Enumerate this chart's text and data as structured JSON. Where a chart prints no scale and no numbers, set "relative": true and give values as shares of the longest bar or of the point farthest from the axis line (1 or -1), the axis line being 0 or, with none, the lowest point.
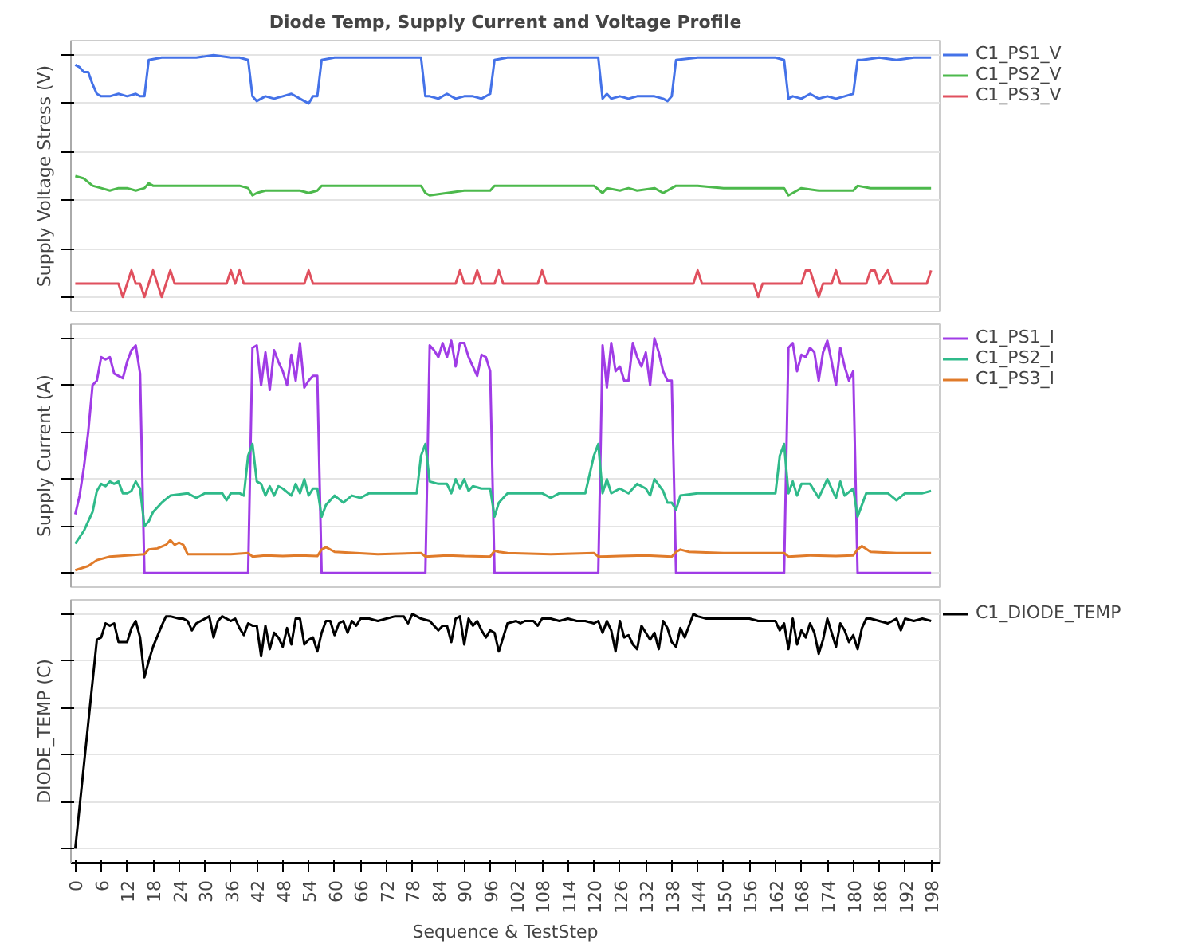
{
  "chart_data": [
    {
      "type": "line",
      "title": "Diode Temp, Supply Current and Voltage Profile",
      "ylabel": "Supply Voltage Stress (V)",
      "relative": true,
      "xlim": [
        -1,
        200
      ],
      "tick_labels": false,
      "grid": "y",
      "legend": "right",
      "series": [
        {
          "name": "C1_PS1_V",
          "color": "#4472e8",
          "x": [
            0,
            1,
            2,
            3,
            4,
            5,
            6,
            8,
            10,
            12,
            14,
            15,
            16,
            17,
            20,
            24,
            28,
            32,
            36,
            38,
            40,
            41,
            42,
            44,
            46,
            48,
            50,
            52,
            54,
            55,
            56,
            57,
            60,
            66,
            72,
            78,
            80,
            81,
            82,
            84,
            86,
            88,
            90,
            92,
            94,
            96,
            97,
            100,
            108,
            116,
            120,
            121,
            122,
            123,
            124,
            126,
            128,
            130,
            132,
            134,
            136,
            137,
            138,
            139,
            144,
            150,
            156,
            162,
            164,
            165,
            166,
            168,
            170,
            172,
            174,
            176,
            178,
            180,
            181,
            182,
            186,
            190,
            194,
            198
          ],
          "values": [
            0.96,
            0.95,
            0.93,
            0.93,
            0.88,
            0.84,
            0.83,
            0.83,
            0.84,
            0.83,
            0.84,
            0.83,
            0.83,
            0.98,
            0.99,
            0.99,
            0.99,
            1.0,
            0.99,
            0.99,
            0.98,
            0.83,
            0.81,
            0.83,
            0.82,
            0.83,
            0.84,
            0.82,
            0.8,
            0.83,
            0.83,
            0.98,
            0.99,
            0.99,
            0.99,
            0.99,
            0.99,
            0.83,
            0.83,
            0.82,
            0.84,
            0.82,
            0.83,
            0.83,
            0.82,
            0.84,
            0.98,
            0.99,
            0.99,
            0.99,
            0.99,
            0.99,
            0.82,
            0.84,
            0.82,
            0.83,
            0.82,
            0.83,
            0.83,
            0.83,
            0.82,
            0.81,
            0.83,
            0.98,
            0.99,
            0.99,
            0.99,
            0.99,
            0.98,
            0.82,
            0.83,
            0.82,
            0.84,
            0.82,
            0.83,
            0.82,
            0.83,
            0.84,
            0.98,
            0.98,
            0.99,
            0.98,
            0.99,
            0.99
          ]
        },
        {
          "name": "C1_PS2_V",
          "color": "#4cb94c",
          "x": [
            0,
            2,
            4,
            6,
            8,
            10,
            12,
            14,
            16,
            17,
            18,
            22,
            26,
            30,
            34,
            38,
            40,
            41,
            42,
            44,
            48,
            52,
            54,
            56,
            57,
            60,
            66,
            72,
            78,
            80,
            81,
            82,
            86,
            90,
            94,
            96,
            97,
            100,
            110,
            120,
            122,
            123,
            126,
            128,
            130,
            134,
            136,
            139,
            144,
            150,
            156,
            162,
            164,
            165,
            166,
            168,
            172,
            176,
            180,
            181,
            184,
            190,
            198
          ],
          "values": [
            0.5,
            0.49,
            0.46,
            0.45,
            0.44,
            0.45,
            0.45,
            0.44,
            0.45,
            0.47,
            0.46,
            0.46,
            0.46,
            0.46,
            0.46,
            0.46,
            0.45,
            0.42,
            0.43,
            0.44,
            0.44,
            0.44,
            0.43,
            0.44,
            0.46,
            0.46,
            0.46,
            0.46,
            0.46,
            0.46,
            0.43,
            0.42,
            0.43,
            0.44,
            0.44,
            0.44,
            0.46,
            0.46,
            0.46,
            0.46,
            0.43,
            0.45,
            0.44,
            0.45,
            0.44,
            0.45,
            0.43,
            0.46,
            0.46,
            0.45,
            0.45,
            0.45,
            0.45,
            0.42,
            0.43,
            0.45,
            0.44,
            0.44,
            0.44,
            0.46,
            0.45,
            0.45,
            0.45
          ]
        },
        {
          "name": "C1_PS3_V",
          "color": "#e0505e",
          "x": [
            0,
            10,
            11,
            12,
            13,
            14,
            15,
            16,
            17,
            18,
            19,
            20,
            21,
            22,
            23,
            35,
            36,
            37,
            38,
            39,
            53,
            54,
            55,
            88,
            89,
            90,
            92,
            93,
            94,
            97,
            98,
            99,
            107,
            108,
            109,
            143,
            144,
            145,
            157,
            158,
            159,
            168,
            169,
            170,
            171,
            172,
            173,
            175,
            176,
            177,
            183,
            184,
            185,
            186,
            188,
            189,
            197,
            198
          ],
          "values": [
            0.055,
            0.055,
            0,
            0.055,
            0.11,
            0.055,
            0.055,
            0,
            0.055,
            0.11,
            0.055,
            0,
            0.055,
            0.11,
            0.055,
            0.055,
            0.11,
            0.055,
            0.11,
            0.055,
            0.055,
            0.11,
            0.055,
            0.055,
            0.11,
            0.055,
            0.055,
            0.11,
            0.055,
            0.055,
            0.11,
            0.055,
            0.055,
            0.11,
            0.055,
            0.055,
            0.11,
            0.055,
            0.055,
            0,
            0.055,
            0.055,
            0.11,
            0.11,
            0.055,
            0,
            0.055,
            0.055,
            0.11,
            0.055,
            0.055,
            0.11,
            0.11,
            0.055,
            0.11,
            0.055,
            0.055,
            0.11
          ]
        }
      ]
    },
    {
      "type": "line",
      "ylabel": "Supply Current (A)",
      "relative": true,
      "xlim": [
        -1,
        200
      ],
      "tick_labels": false,
      "grid": "y",
      "legend": "right",
      "series": [
        {
          "name": "C1_PS1_I",
          "color": "#a03ce6",
          "x": [
            0,
            1,
            2,
            3,
            4,
            5,
            6,
            7,
            8,
            9,
            10,
            11,
            12,
            13,
            14,
            15,
            16,
            40,
            41,
            42,
            43,
            44,
            45,
            46,
            47,
            48,
            49,
            50,
            51,
            52,
            53,
            54,
            55,
            56,
            57,
            81,
            82,
            83,
            84,
            85,
            86,
            87,
            88,
            89,
            90,
            91,
            92,
            93,
            94,
            95,
            96,
            97,
            121,
            122,
            123,
            124,
            125,
            126,
            127,
            128,
            129,
            130,
            131,
            132,
            133,
            134,
            135,
            136,
            137,
            138,
            139,
            164,
            165,
            166,
            167,
            168,
            169,
            170,
            171,
            172,
            173,
            174,
            175,
            176,
            177,
            178,
            179,
            180,
            181,
            198
          ],
          "values": [
            0.25,
            0.33,
            0.45,
            0.6,
            0.8,
            0.82,
            0.92,
            0.91,
            0.92,
            0.85,
            0.84,
            0.83,
            0.9,
            0.95,
            0.97,
            0.85,
            0,
            0,
            0.96,
            0.97,
            0.8,
            0.94,
            0.78,
            0.95,
            0.9,
            0.86,
            0.8,
            0.93,
            0.82,
            0.98,
            0.79,
            0.82,
            0.84,
            0.84,
            0,
            0,
            0.97,
            0.95,
            0.92,
            0.98,
            0.92,
            0.99,
            0.88,
            0.98,
            0.98,
            0.92,
            0.88,
            0.84,
            0.93,
            0.92,
            0.86,
            0,
            0,
            0.97,
            0.79,
            0.98,
            0.86,
            0.88,
            0.82,
            0.82,
            0.98,
            0.92,
            0.88,
            0.94,
            0.8,
            1.0,
            0.94,
            0.86,
            0.82,
            0.82,
            0,
            0,
            0.96,
            0.98,
            0.86,
            0.93,
            0.92,
            0.96,
            0.94,
            0.82,
            0.94,
            0.99,
            0.9,
            0.8,
            0.96,
            0.88,
            0.82,
            0.86,
            0,
            0
          ]
        },
        {
          "name": "C1_PS2_I",
          "color": "#2fba8a",
          "x": [
            0,
            2,
            4,
            5,
            6,
            7,
            8,
            9,
            10,
            11,
            12,
            13,
            14,
            15,
            16,
            17,
            18,
            20,
            22,
            26,
            28,
            30,
            32,
            34,
            35,
            36,
            38,
            39,
            40,
            41,
            42,
            43,
            44,
            45,
            46,
            47,
            48,
            50,
            51,
            52,
            53,
            54,
            55,
            56,
            57,
            58,
            60,
            62,
            64,
            66,
            68,
            72,
            76,
            79,
            80,
            81,
            82,
            84,
            86,
            87,
            88,
            89,
            90,
            91,
            92,
            94,
            96,
            97,
            98,
            100,
            104,
            108,
            110,
            112,
            118,
            120,
            121,
            122,
            123,
            124,
            126,
            128,
            130,
            132,
            133,
            134,
            136,
            137,
            138,
            139,
            140,
            144,
            150,
            156,
            162,
            163,
            164,
            165,
            166,
            167,
            168,
            170,
            172,
            174,
            176,
            177,
            178,
            180,
            181,
            183,
            188,
            190,
            192,
            196,
            198
          ],
          "values": [
            0.125,
            0.18,
            0.26,
            0.35,
            0.38,
            0.37,
            0.39,
            0.38,
            0.39,
            0.34,
            0.34,
            0.35,
            0.39,
            0.36,
            0.2,
            0.22,
            0.26,
            0.3,
            0.33,
            0.34,
            0.32,
            0.34,
            0.34,
            0.34,
            0.31,
            0.34,
            0.34,
            0.33,
            0.5,
            0.55,
            0.39,
            0.38,
            0.33,
            0.37,
            0.33,
            0.37,
            0.36,
            0.33,
            0.38,
            0.34,
            0.4,
            0.33,
            0.36,
            0.36,
            0.24,
            0.29,
            0.33,
            0.3,
            0.33,
            0.32,
            0.34,
            0.34,
            0.34,
            0.34,
            0.5,
            0.55,
            0.39,
            0.38,
            0.38,
            0.34,
            0.4,
            0.36,
            0.4,
            0.35,
            0.37,
            0.36,
            0.36,
            0.24,
            0.3,
            0.34,
            0.34,
            0.34,
            0.32,
            0.34,
            0.34,
            0.5,
            0.55,
            0.34,
            0.4,
            0.34,
            0.36,
            0.34,
            0.38,
            0.36,
            0.33,
            0.4,
            0.35,
            0.3,
            0.3,
            0.27,
            0.33,
            0.34,
            0.34,
            0.34,
            0.34,
            0.5,
            0.55,
            0.34,
            0.39,
            0.33,
            0.38,
            0.38,
            0.32,
            0.4,
            0.32,
            0.39,
            0.33,
            0.36,
            0.24,
            0.34,
            0.34,
            0.31,
            0.34,
            0.34,
            0.35
          ]
        },
        {
          "name": "C1_PS3_I",
          "color": "#e07b2a",
          "x": [
            0,
            3,
            5,
            8,
            12,
            16,
            17,
            19,
            21,
            22,
            23,
            24,
            25,
            26,
            30,
            36,
            40,
            41,
            44,
            48,
            52,
            56,
            57,
            58,
            60,
            70,
            80,
            81,
            86,
            90,
            96,
            97,
            98,
            100,
            110,
            120,
            121,
            126,
            132,
            138,
            139,
            140,
            142,
            150,
            160,
            164,
            165,
            170,
            176,
            180,
            181,
            182,
            184,
            190,
            198
          ],
          "values": [
            0.012,
            0.03,
            0.055,
            0.07,
            0.075,
            0.08,
            0.1,
            0.105,
            0.12,
            0.14,
            0.12,
            0.13,
            0.12,
            0.08,
            0.08,
            0.08,
            0.085,
            0.07,
            0.075,
            0.072,
            0.075,
            0.072,
            0.1,
            0.11,
            0.09,
            0.08,
            0.085,
            0.07,
            0.075,
            0.072,
            0.07,
            0.095,
            0.09,
            0.085,
            0.08,
            0.085,
            0.07,
            0.072,
            0.075,
            0.07,
            0.09,
            0.1,
            0.09,
            0.085,
            0.085,
            0.085,
            0.07,
            0.075,
            0.072,
            0.075,
            0.1,
            0.115,
            0.09,
            0.085,
            0.085
          ]
        }
      ]
    },
    {
      "type": "line",
      "ylabel": "DIODE_TEMP (C)",
      "xlabel": "Sequence & TestStep",
      "relative": true,
      "xlim": [
        -1,
        200
      ],
      "xticks": [
        0,
        6,
        12,
        18,
        24,
        30,
        36,
        42,
        48,
        54,
        60,
        66,
        72,
        78,
        84,
        90,
        96,
        102,
        108,
        114,
        120,
        126,
        132,
        138,
        144,
        150,
        156,
        162,
        168,
        174,
        180,
        186,
        192,
        198
      ],
      "tick_labels": "x",
      "grid": "y",
      "legend": "right",
      "series": [
        {
          "name": "C1_DIODE_TEMP",
          "color": "#000000",
          "x": [
            0,
            5,
            6,
            7,
            8,
            9,
            10,
            11,
            12,
            13,
            14,
            15,
            16,
            17,
            18,
            20,
            21,
            22,
            24,
            25,
            26,
            27,
            28,
            30,
            31,
            32,
            33,
            34,
            36,
            37,
            38,
            39,
            40,
            41,
            42,
            43,
            44,
            45,
            46,
            47,
            48,
            49,
            50,
            51,
            52,
            53,
            54,
            55,
            56,
            57,
            58,
            59,
            60,
            61,
            62,
            63,
            64,
            65,
            66,
            68,
            70,
            72,
            74,
            76,
            77,
            78,
            80,
            82,
            84,
            85,
            86,
            87,
            88,
            89,
            90,
            91,
            92,
            93,
            94,
            95,
            96,
            97,
            98,
            99,
            100,
            102,
            103,
            104,
            106,
            107,
            108,
            110,
            112,
            114,
            116,
            118,
            120,
            121,
            122,
            123,
            124,
            125,
            126,
            127,
            128,
            129,
            130,
            131,
            132,
            133,
            134,
            135,
            136,
            137,
            138,
            139,
            140,
            141,
            142,
            143,
            144,
            146,
            148,
            150,
            152,
            154,
            156,
            158,
            160,
            162,
            163,
            164,
            165,
            166,
            167,
            168,
            169,
            170,
            171,
            172,
            173,
            174,
            175,
            176,
            177,
            178,
            179,
            180,
            181,
            182,
            183,
            184,
            186,
            188,
            190,
            191,
            192,
            194,
            196,
            198
          ],
          "values": [
            0,
            0.89,
            0.9,
            0.96,
            0.95,
            0.96,
            0.88,
            0.88,
            0.88,
            0.94,
            0.97,
            0.9,
            0.73,
            0.8,
            0.86,
            0.95,
            0.99,
            0.99,
            0.98,
            0.98,
            0.97,
            0.93,
            0.96,
            0.98,
            0.99,
            0.9,
            0.97,
            0.99,
            0.97,
            0.98,
            0.94,
            0.91,
            0.96,
            0.95,
            0.95,
            0.82,
            0.95,
            0.85,
            0.92,
            0.9,
            0.86,
            0.94,
            0.87,
            0.98,
            0.98,
            0.87,
            0.89,
            0.9,
            0.84,
            0.92,
            0.97,
            0.97,
            0.91,
            0.96,
            0.97,
            0.92,
            0.97,
            0.95,
            0.98,
            0.98,
            0.97,
            0.98,
            0.99,
            0.99,
            0.96,
            1.0,
            0.98,
            0.97,
            0.93,
            0.95,
            0.95,
            0.88,
            0.98,
            0.99,
            0.87,
            0.98,
            0.95,
            0.97,
            0.93,
            0.9,
            0.93,
            0.92,
            0.84,
            0.9,
            0.96,
            0.97,
            0.96,
            0.97,
            0.97,
            0.95,
            0.98,
            0.98,
            0.97,
            0.98,
            0.97,
            0.97,
            0.96,
            0.97,
            0.92,
            0.97,
            0.93,
            0.84,
            0.97,
            0.9,
            0.91,
            0.87,
            0.85,
            0.95,
            0.92,
            0.89,
            0.92,
            0.85,
            0.97,
            0.94,
            0.88,
            0.86,
            0.94,
            0.9,
            0.95,
            1.0,
            0.99,
            0.98,
            0.98,
            0.98,
            0.98,
            0.98,
            0.98,
            0.97,
            0.97,
            0.97,
            0.93,
            0.96,
            0.85,
            0.98,
            0.87,
            0.93,
            0.9,
            0.96,
            0.92,
            0.83,
            0.89,
            0.98,
            0.92,
            0.86,
            0.96,
            0.93,
            0.88,
            0.91,
            0.85,
            0.94,
            0.98,
            0.98,
            0.97,
            0.96,
            0.98,
            0.93,
            0.98,
            0.97,
            0.98,
            0.97
          ]
        }
      ]
    }
  ]
}
